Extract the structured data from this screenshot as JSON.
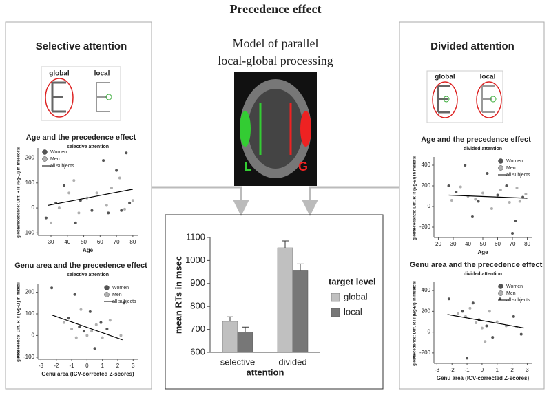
{
  "title": "Precedence effect",
  "model_title": [
    "Model of parallel",
    "local-global processing"
  ],
  "brain_labels": [
    "L",
    "G"
  ],
  "panels": [
    {
      "title": "Selective attention",
      "icon_labels": [
        "global",
        "local"
      ]
    },
    {
      "title": "Divided attention",
      "icon_labels": [
        "global",
        "local"
      ]
    }
  ],
  "chart_data": [
    {
      "type": "scatter",
      "title": "Age and the precedence effect",
      "subtitle": "selective attention",
      "xlabel": "Age",
      "ylabel": "Precedence: Diff. RTs (Gg-Ll) in msec",
      "ylabel_low": "global",
      "ylabel_high": "local",
      "legend": "upper left",
      "xlim": [
        22,
        83
      ],
      "xticks": [
        30,
        40,
        50,
        60,
        70,
        80
      ],
      "ylim": [
        -110,
        240
      ],
      "yticks": [
        -100,
        0,
        100,
        200
      ],
      "series": [
        {
          "name": "Women",
          "color": "#555555",
          "x": [
            27,
            33,
            38,
            45,
            48,
            55,
            62,
            65,
            70,
            73,
            76,
            78
          ],
          "values": [
            -40,
            20,
            90,
            -60,
            30,
            -10,
            190,
            -20,
            150,
            -10,
            220,
            20
          ]
        },
        {
          "name": "Men",
          "color": "#b0b0b0",
          "x": [
            30,
            35,
            41,
            44,
            47,
            52,
            58,
            64,
            67,
            72,
            75,
            80
          ],
          "values": [
            -60,
            0,
            60,
            110,
            -20,
            40,
            60,
            10,
            80,
            120,
            -5,
            30
          ]
        },
        {
          "name": "all subjects",
          "color": "#000000",
          "line": true,
          "x": [
            28,
            80
          ],
          "values": [
            10,
            75
          ]
        }
      ]
    },
    {
      "type": "scatter",
      "title": "Genu area and the precedence effect",
      "subtitle": "selective attention",
      "xlabel": "Genu area (ICV-corrected Z-scores)",
      "ylabel": "Precedence: Diff. RTs (Gg-Ll) in msec",
      "ylabel_low": "global",
      "ylabel_high": "local",
      "legend": "upper right",
      "xlim": [
        -3.2,
        3.3
      ],
      "xticks": [
        -3,
        -2,
        -1,
        0,
        1,
        2,
        3
      ],
      "ylim": [
        -110,
        240
      ],
      "yticks": [
        -100,
        0,
        100,
        200
      ],
      "series": [
        {
          "name": "Women",
          "color": "#555555",
          "x": [
            -2.3,
            -1.2,
            -0.8,
            -0.5,
            -0.2,
            0.2,
            0.5,
            0.9,
            1.3,
            2.4
          ],
          "values": [
            220,
            80,
            190,
            40,
            20,
            110,
            -60,
            60,
            30,
            150
          ]
        },
        {
          "name": "Men",
          "color": "#b0b0b0",
          "x": [
            -1.5,
            -1.0,
            -0.7,
            -0.4,
            0,
            0.3,
            0.6,
            1.0,
            1.5,
            2.2
          ],
          "values": [
            60,
            30,
            -10,
            120,
            0,
            20,
            50,
            -10,
            70,
            0
          ]
        },
        {
          "name": "all subjects",
          "color": "#000000",
          "line": true,
          "x": [
            -2.3,
            2.3
          ],
          "values": [
            95,
            -20
          ]
        }
      ]
    },
    {
      "type": "bar",
      "ylabel": "mean RTs in msec",
      "xlabel": "attention",
      "legend_title": "target level",
      "categories": [
        "selective",
        "divided"
      ],
      "ylim": [
        600,
        1100
      ],
      "yticks": [
        600,
        700,
        800,
        900,
        1000,
        1100
      ],
      "series": [
        {
          "name": "global",
          "color": "#c0c0c0",
          "values": [
            735,
            1055
          ],
          "errors": [
            20,
            30
          ]
        },
        {
          "name": "local",
          "color": "#777777",
          "values": [
            688,
            955
          ],
          "errors": [
            22,
            30
          ]
        }
      ]
    },
    {
      "type": "scatter",
      "title": "Age and the precedence effect",
      "subtitle": "divided attention",
      "xlabel": "Age",
      "ylabel": "Precedence: Diff. RTs (Bg-Bl) in msec",
      "ylabel_low": "global",
      "ylabel_high": "local",
      "legend": "upper right",
      "xlim": [
        17,
        83
      ],
      "xticks": [
        20,
        30,
        40,
        50,
        60,
        70,
        80
      ],
      "ylim": [
        -300,
        480
      ],
      "yticks": [
        -200,
        0,
        200,
        400
      ],
      "series": [
        {
          "name": "Women",
          "color": "#555555",
          "x": [
            27,
            32,
            38,
            43,
            47,
            53,
            60,
            66,
            70,
            72,
            77
          ],
          "values": [
            200,
            140,
            400,
            -100,
            50,
            320,
            110,
            200,
            -260,
            -140,
            90
          ]
        },
        {
          "name": "Men",
          "color": "#b0b0b0",
          "x": [
            29,
            35,
            40,
            45,
            50,
            56,
            62,
            68,
            73,
            75,
            79
          ],
          "values": [
            60,
            190,
            100,
            70,
            130,
            -20,
            160,
            40,
            180,
            50,
            120
          ]
        },
        {
          "name": "all subjects",
          "color": "#000000",
          "line": true,
          "x": [
            27,
            80
          ],
          "values": [
            110,
            80
          ]
        }
      ]
    },
    {
      "type": "scatter",
      "title": "Genu area and the precedence effect",
      "subtitle": "divided attention",
      "xlabel": "Genu area (ICV-corrected Z-scores)",
      "ylabel": "Precedence: Diff. RTs (Bg-Bl) in msec",
      "ylabel_low": "global",
      "ylabel_high": "local",
      "legend": "upper right",
      "xlim": [
        -3.2,
        3.3
      ],
      "xticks": [
        -3,
        -2,
        -1,
        0,
        1,
        2,
        3
      ],
      "ylim": [
        -300,
        480
      ],
      "yticks": [
        -200,
        0,
        200,
        400
      ],
      "series": [
        {
          "name": "Women",
          "color": "#555555",
          "x": [
            -2.2,
            -1.3,
            -1.0,
            -0.6,
            -0.2,
            0.3,
            0.7,
            1.2,
            2.1,
            2.6
          ],
          "values": [
            320,
            200,
            -250,
            280,
            120,
            60,
            -50,
            320,
            150,
            -20
          ]
        },
        {
          "name": "Men",
          "color": "#b0b0b0",
          "x": [
            -1.6,
            -1.1,
            -0.8,
            -0.4,
            0,
            0.2,
            0.5,
            1.0,
            1.6,
            2.3
          ],
          "values": [
            180,
            150,
            230,
            90,
            40,
            -90,
            200,
            100,
            60,
            50
          ]
        },
        {
          "name": "all subjects",
          "color": "#000000",
          "line": true,
          "x": [
            -2.3,
            2.8
          ],
          "values": [
            170,
            40
          ]
        }
      ]
    }
  ]
}
